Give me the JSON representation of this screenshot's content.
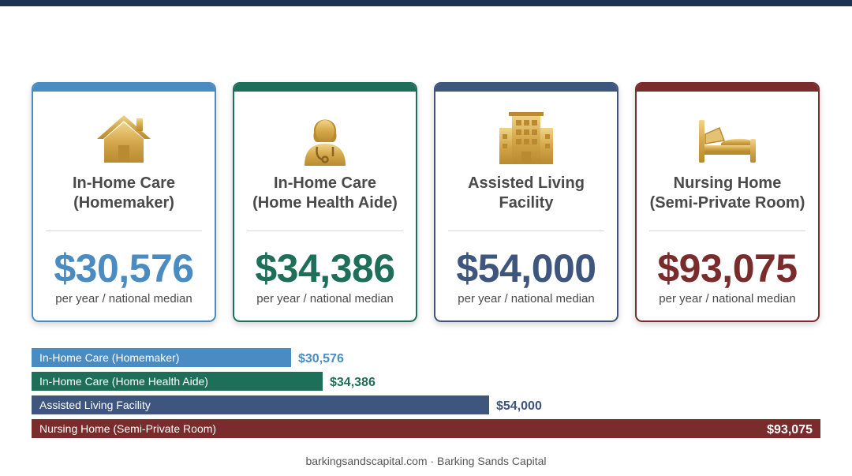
{
  "cards": [
    {
      "title_line1": "In-Home Care",
      "title_line2": "(Homemaker)",
      "value": "$30,576",
      "caption": "per year / national median",
      "color": "#4a8cc2",
      "icon": "house-icon"
    },
    {
      "title_line1": "In-Home Care",
      "title_line2": "(Home Health Aide)",
      "value": "$34,386",
      "caption": "per year / national median",
      "color": "#1e6f5a",
      "icon": "nurse-icon"
    },
    {
      "title_line1": "Assisted Living",
      "title_line2": "Facility",
      "value": "$54,000",
      "caption": "per year / national median",
      "color": "#3e557e",
      "icon": "building-icon"
    },
    {
      "title_line1": "Nursing Home",
      "title_line2": "(Semi-Private Room)",
      "value": "$93,075",
      "caption": "per year / national median",
      "color": "#7a2b2b",
      "icon": "bed-icon"
    }
  ],
  "chart_data": {
    "type": "bar",
    "orientation": "horizontal",
    "categories": [
      "In-Home Care (Homemaker)",
      "In-Home Care (Home Health Aide)",
      "Assisted Living Facility",
      "Nursing Home (Semi-Private Room)"
    ],
    "values": [
      30576,
      34386,
      54000,
      93075
    ],
    "value_labels": [
      "$30,576",
      "$34,386",
      "$54,000",
      "$93,075"
    ],
    "colors": [
      "#4a8cc2",
      "#1e6f5a",
      "#3e557e",
      "#7a2b2b"
    ],
    "xlim": [
      0,
      93075
    ],
    "grid": false,
    "legend": "none"
  },
  "footer": "barkingsandscapital.com · Barking Sands Capital",
  "accent_gold": "#d4a74a"
}
